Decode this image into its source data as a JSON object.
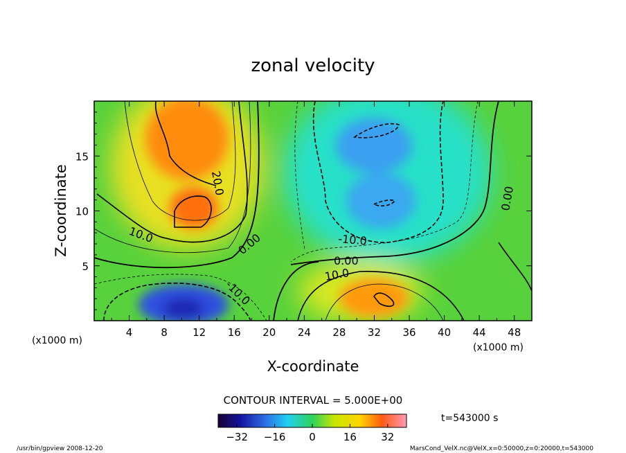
{
  "chart_data": {
    "type": "heatmap",
    "title": "zonal velocity",
    "xlabel": "X-coordinate",
    "ylabel": "Z-coordinate",
    "x_unit_label": "(x1000 m)",
    "x_unit_label_right": "(x1000 m)",
    "xlim": [
      0,
      50
    ],
    "ylim": [
      0,
      20
    ],
    "xticks": [
      4,
      8,
      12,
      16,
      20,
      24,
      28,
      32,
      36,
      40,
      44,
      48
    ],
    "yticks": [
      5,
      10,
      15
    ],
    "contour_interval_text": "CONTOUR INTERVAL = 5.000E+00",
    "contour_labels": [
      "20.0",
      "10.0",
      "0.00",
      "-10.0",
      "10.0",
      "0.00",
      "-10.0",
      "0.00"
    ],
    "colorbar": {
      "min": -40,
      "max": 40,
      "ticks": [
        -32,
        -16,
        0,
        16,
        32
      ]
    },
    "time_label": "t=543000 s",
    "field_features": [
      {
        "x": 10,
        "y": 15,
        "value": 24
      },
      {
        "x": 11,
        "y": 9.5,
        "value": 24
      },
      {
        "x": 9,
        "y": 2,
        "value": -30
      },
      {
        "x": 32,
        "y": 17,
        "value": -18
      },
      {
        "x": 32,
        "y": 10.5,
        "value": -15
      },
      {
        "x": 33,
        "y": 2.5,
        "value": 18
      },
      {
        "x": 45,
        "y": 12,
        "value": -3
      }
    ]
  },
  "footer": {
    "left": "/usr/bin/gpview   2008-12-20",
    "right": "MarsCond_VelX.nc@VelX,x=0:50000,z=0:20000,t=543000"
  }
}
